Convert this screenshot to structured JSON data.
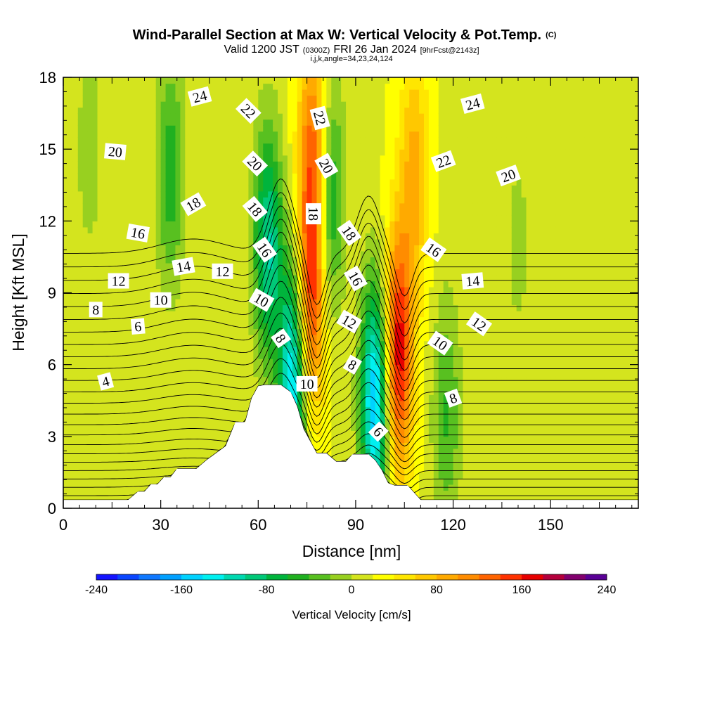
{
  "figure": {
    "title": "Wind-Parallel Section at Max W: Vertical Velocity & Pot.Temp.",
    "title_suffix": "(C)",
    "subtitle_parts": [
      "Valid 1200 JST",
      "(0300Z)",
      "FRI 26 Jan 2024",
      "[9hrFcst@2143z]"
    ],
    "subtitle2": "i,j,k,angle=34,23,24,124"
  },
  "chart_data": {
    "type": "contour-section",
    "title": "Wind-Parallel Section at Max W: Vertical Velocity & Pot.Temp.",
    "xlabel": "Distance [nm]",
    "ylabel": "Height [Kft MSL]",
    "xlim": [
      0,
      177
    ],
    "ylim": [
      0,
      18
    ],
    "x_ticks": [
      0,
      30,
      60,
      90,
      120,
      150
    ],
    "y_ticks": [
      0,
      3,
      6,
      9,
      12,
      15,
      18
    ],
    "fill_variable": "Vertical Velocity [cm/s]",
    "contour_variable": "Potential temperature (C)",
    "contour_interval": 1,
    "colorbar": {
      "label": "Vertical Velocity [cm/s]",
      "min": -240,
      "max": 240,
      "step": 20,
      "tick_labels": [
        "-240",
        "-160",
        "-80",
        "0",
        "80",
        "160",
        "240"
      ],
      "colors": [
        "#1414ff",
        "#0a46ff",
        "#0f78ff",
        "#00a0ff",
        "#00d2ff",
        "#00f0f0",
        "#00d8b0",
        "#00c878",
        "#00b43c",
        "#20b020",
        "#58c020",
        "#98d020",
        "#d4e41e",
        "#ffff00",
        "#ffe600",
        "#ffc800",
        "#ffaa00",
        "#ff8c00",
        "#ff6400",
        "#ff3200",
        "#e60000",
        "#b4003c",
        "#82006e",
        "#5a0096"
      ]
    },
    "terrain": {
      "x": [
        0,
        20,
        23,
        25,
        27,
        29,
        31,
        33,
        35,
        38,
        41,
        44,
        47,
        50,
        53,
        56,
        58,
        60,
        62,
        64,
        67,
        70,
        72,
        74,
        76,
        78,
        81,
        84,
        87,
        89,
        91,
        94,
        96,
        98,
        100,
        102,
        104,
        106,
        110,
        112,
        177
      ],
      "top": [
        0.35,
        0.35,
        0.7,
        0.7,
        1.0,
        1.0,
        1.3,
        1.3,
        1.65,
        1.65,
        1.65,
        2.0,
        2.3,
        2.6,
        3.6,
        3.6,
        4.6,
        5.1,
        5.15,
        5.15,
        5.15,
        4.85,
        4.25,
        3.3,
        2.8,
        2.3,
        2.3,
        1.95,
        1.95,
        2.25,
        2.25,
        2.25,
        2.0,
        1.6,
        1.05,
        0.95,
        0.95,
        0.95,
        0.35,
        0.35,
        0.35
      ]
    },
    "w_features": [
      {
        "x": 8,
        "z": 15,
        "w": -30
      },
      {
        "x": 33,
        "z": 14,
        "w": -70
      },
      {
        "x": 63,
        "z": 11,
        "w": -120
      },
      {
        "x": 71,
        "z": 5.5,
        "w": -170
      },
      {
        "x": 76,
        "z": 8.5,
        "w": 140
      },
      {
        "x": 77,
        "z": 15,
        "w": 110
      },
      {
        "x": 82,
        "z": 13,
        "w": -90
      },
      {
        "x": 96,
        "z": 4.5,
        "w": -180
      },
      {
        "x": 103,
        "z": 6.5,
        "w": 160
      },
      {
        "x": 108,
        "z": 14,
        "w": 70
      },
      {
        "x": 118,
        "z": 4,
        "w": -60
      },
      {
        "x": 140,
        "z": 11,
        "w": -25
      }
    ],
    "contour_labels": [
      {
        "text": "4",
        "x": 13,
        "z": 5.3,
        "angle": -15
      },
      {
        "text": "6",
        "x": 23,
        "z": 7.6,
        "angle": -5
      },
      {
        "text": "8",
        "x": 10,
        "z": 8.3,
        "angle": 0
      },
      {
        "text": "10",
        "x": 30,
        "z": 8.7,
        "angle": 0
      },
      {
        "text": "12",
        "x": 17,
        "z": 9.5,
        "angle": 0
      },
      {
        "text": "12",
        "x": 49,
        "z": 9.9,
        "angle": 0
      },
      {
        "text": "14",
        "x": 37,
        "z": 10.1,
        "angle": -10
      },
      {
        "text": "16",
        "x": 23,
        "z": 11.5,
        "angle": 10
      },
      {
        "text": "18",
        "x": 40,
        "z": 12.7,
        "angle": -30
      },
      {
        "text": "20",
        "x": 16,
        "z": 14.9,
        "angle": 5
      },
      {
        "text": "24",
        "x": 42,
        "z": 17.2,
        "angle": -15
      },
      {
        "text": "22",
        "x": 57,
        "z": 16.6,
        "angle": 45
      },
      {
        "text": "20",
        "x": 59,
        "z": 14.4,
        "angle": 45
      },
      {
        "text": "18",
        "x": 59,
        "z": 12.5,
        "angle": 50
      },
      {
        "text": "16",
        "x": 62,
        "z": 10.8,
        "angle": 55
      },
      {
        "text": "10",
        "x": 61,
        "z": 8.7,
        "angle": 30
      },
      {
        "text": "8",
        "x": 67,
        "z": 7.1,
        "angle": 55
      },
      {
        "text": "10",
        "x": 75,
        "z": 5.2,
        "angle": 0
      },
      {
        "text": "22",
        "x": 79,
        "z": 16.3,
        "angle": 75
      },
      {
        "text": "20",
        "x": 81,
        "z": 14.3,
        "angle": 60
      },
      {
        "text": "18",
        "x": 77,
        "z": 12.3,
        "angle": 90
      },
      {
        "text": "18",
        "x": 88,
        "z": 11.5,
        "angle": 55
      },
      {
        "text": "16",
        "x": 90,
        "z": 9.6,
        "angle": 60
      },
      {
        "text": "12",
        "x": 88,
        "z": 7.8,
        "angle": 30
      },
      {
        "text": "8",
        "x": 89,
        "z": 6.0,
        "angle": 30
      },
      {
        "text": "6",
        "x": 97,
        "z": 3.2,
        "angle": 45
      },
      {
        "text": "16",
        "x": 114,
        "z": 10.8,
        "angle": 35
      },
      {
        "text": "14",
        "x": 126,
        "z": 9.5,
        "angle": -5
      },
      {
        "text": "12",
        "x": 128,
        "z": 7.7,
        "angle": 35
      },
      {
        "text": "10",
        "x": 116,
        "z": 6.9,
        "angle": 35
      },
      {
        "text": "8",
        "x": 120,
        "z": 4.6,
        "angle": -20
      },
      {
        "text": "22",
        "x": 117,
        "z": 14.5,
        "angle": -20
      },
      {
        "text": "20",
        "x": 137,
        "z": 13.9,
        "angle": -20
      },
      {
        "text": "24",
        "x": 126,
        "z": 16.9,
        "angle": -15
      }
    ]
  }
}
